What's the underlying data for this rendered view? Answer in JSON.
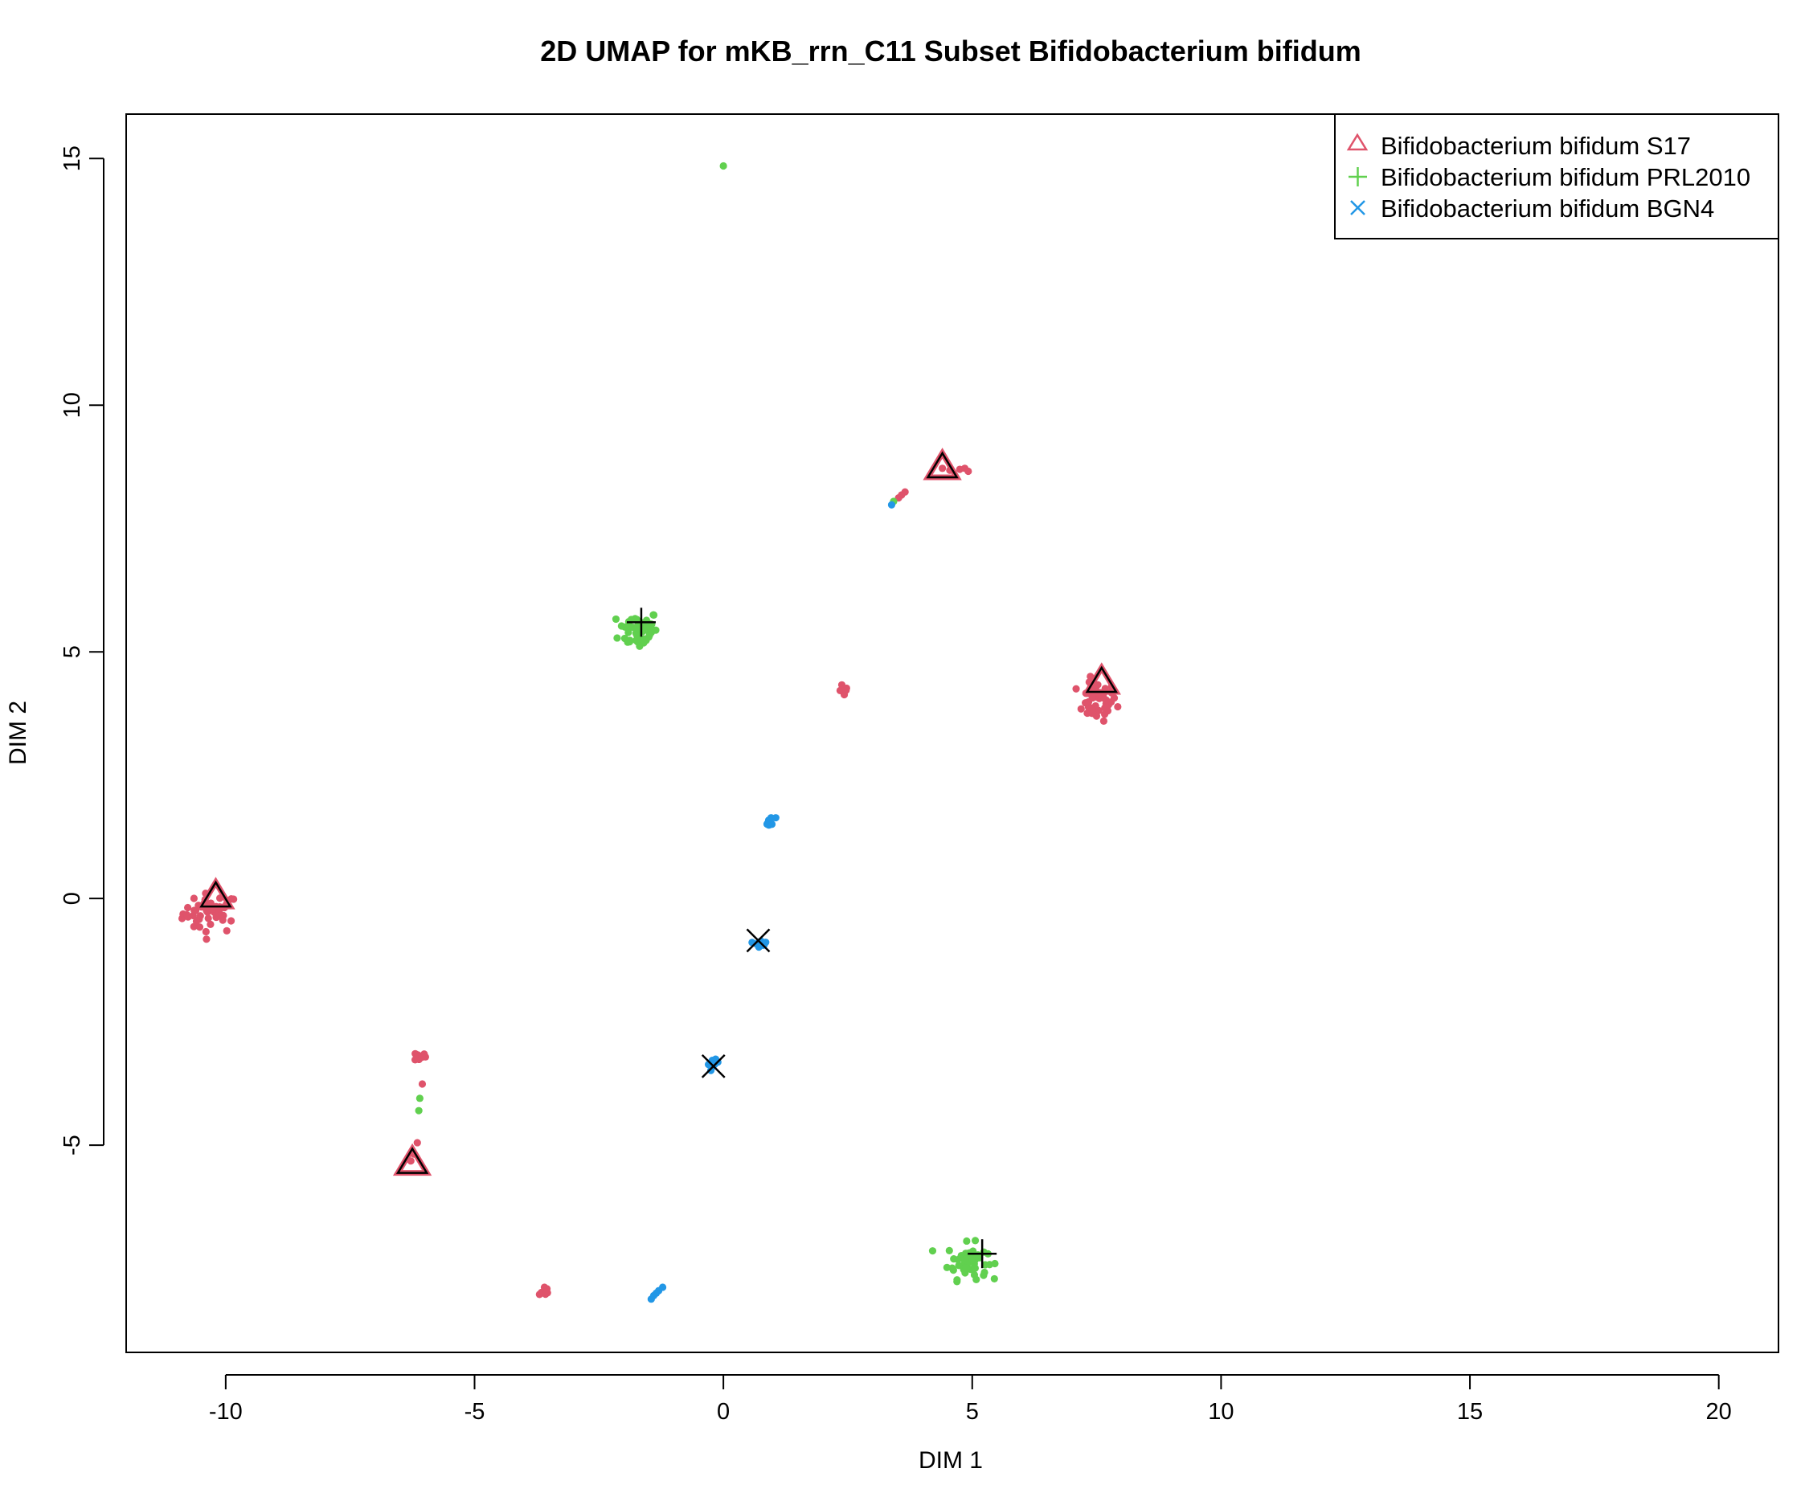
{
  "chart_data": {
    "type": "scatter",
    "title": "2D UMAP for  mKB_rrn_C11  Subset  Bifidobacterium bifidum",
    "xlabel": "DIM 1",
    "ylabel": "DIM 2",
    "xlim": [
      -12,
      21.2
    ],
    "ylim": [
      -9.2,
      15.9
    ],
    "xticks": [
      -10,
      -5,
      0,
      5,
      10,
      15,
      20
    ],
    "yticks": [
      -5,
      0,
      5,
      10,
      15
    ],
    "xtick_labels": [
      "-10",
      "-5",
      "0",
      "5",
      "10",
      "15",
      "20"
    ],
    "ytick_labels": [
      "-5",
      "0",
      "5",
      "10",
      "15"
    ],
    "grid": false,
    "legend_position": "top-right",
    "legend": [
      {
        "label": "Bifidobacterium bifidum S17",
        "color": "#DF536B",
        "symbol": "triangle"
      },
      {
        "label": "Bifidobacterium bifidum PRL2010",
        "color": "#61D04F",
        "symbol": "plus"
      },
      {
        "label": "Bifidobacterium bifidum BGN4",
        "color": "#2297E6",
        "symbol": "cross"
      }
    ],
    "series": [
      {
        "name": "Bifidobacterium bifidum S17",
        "color": "#DF536B",
        "clusters": [
          {
            "center": [
              -10.3,
              -0.3
            ],
            "spread": [
              0.28,
              0.2
            ],
            "n": 45
          },
          {
            "center": [
              7.5,
              4.0
            ],
            "spread": [
              0.2,
              0.2
            ],
            "n": 50
          },
          {
            "center": [
              2.45,
              4.2
            ],
            "spread": [
              0.06,
              0.06
            ],
            "n": 6
          },
          {
            "center": [
              -3.6,
              -7.95
            ],
            "spread": [
              0.05,
              0.05
            ],
            "n": 6
          },
          {
            "center": [
              -6.1,
              -3.2
            ],
            "spread": [
              0.06,
              0.05
            ],
            "n": 12
          }
        ],
        "points": [
          [
            4.4,
            8.72
          ],
          [
            4.55,
            8.68
          ],
          [
            4.75,
            8.7
          ],
          [
            4.85,
            8.72
          ],
          [
            4.92,
            8.66
          ],
          [
            3.65,
            8.24
          ],
          [
            3.58,
            8.18
          ],
          [
            3.52,
            8.12
          ],
          [
            -6.05,
            -3.76
          ],
          [
            -6.15,
            -4.95
          ],
          [
            -6.22,
            -5.18
          ],
          [
            -6.28,
            -5.32
          ]
        ],
        "centroids": [
          [
            -10.2,
            0.05
          ],
          [
            4.4,
            8.75
          ],
          [
            7.6,
            4.4
          ],
          [
            -6.25,
            -5.35
          ]
        ]
      },
      {
        "name": "Bifidobacterium bifidum PRL2010",
        "color": "#61D04F",
        "clusters": [
          {
            "center": [
              -1.7,
              5.45
            ],
            "spread": [
              0.2,
              0.2
            ],
            "n": 55
          },
          {
            "center": [
              4.9,
              -7.35
            ],
            "spread": [
              0.2,
              0.18
            ],
            "n": 55
          }
        ],
        "points": [
          [
            0.0,
            14.85
          ],
          [
            -6.1,
            -4.05
          ],
          [
            -6.12,
            -4.3
          ],
          [
            3.42,
            8.05
          ]
        ],
        "centroids": [
          [
            -1.65,
            5.6
          ],
          [
            5.2,
            -7.2
          ]
        ]
      },
      {
        "name": "Bifidobacterium bifidum BGN4",
        "color": "#2297E6",
        "clusters": [
          {
            "center": [
              0.95,
              1.55
            ],
            "spread": [
              0.05,
              0.05
            ],
            "n": 12
          },
          {
            "center": [
              0.75,
              -0.9
            ],
            "spread": [
              0.06,
              0.04
            ],
            "n": 12
          },
          {
            "center": [
              -0.2,
              -3.35
            ],
            "spread": [
              0.05,
              0.04
            ],
            "n": 10
          }
        ],
        "points": [
          [
            3.38,
            7.98
          ],
          [
            -1.4,
            -8.05
          ],
          [
            -1.3,
            -7.95
          ],
          [
            -1.22,
            -7.88
          ],
          [
            -1.45,
            -8.12
          ],
          [
            -1.35,
            -8.0
          ]
        ],
        "centroids": [
          [
            0.7,
            -0.85
          ],
          [
            -0.2,
            -3.4
          ]
        ]
      }
    ]
  }
}
